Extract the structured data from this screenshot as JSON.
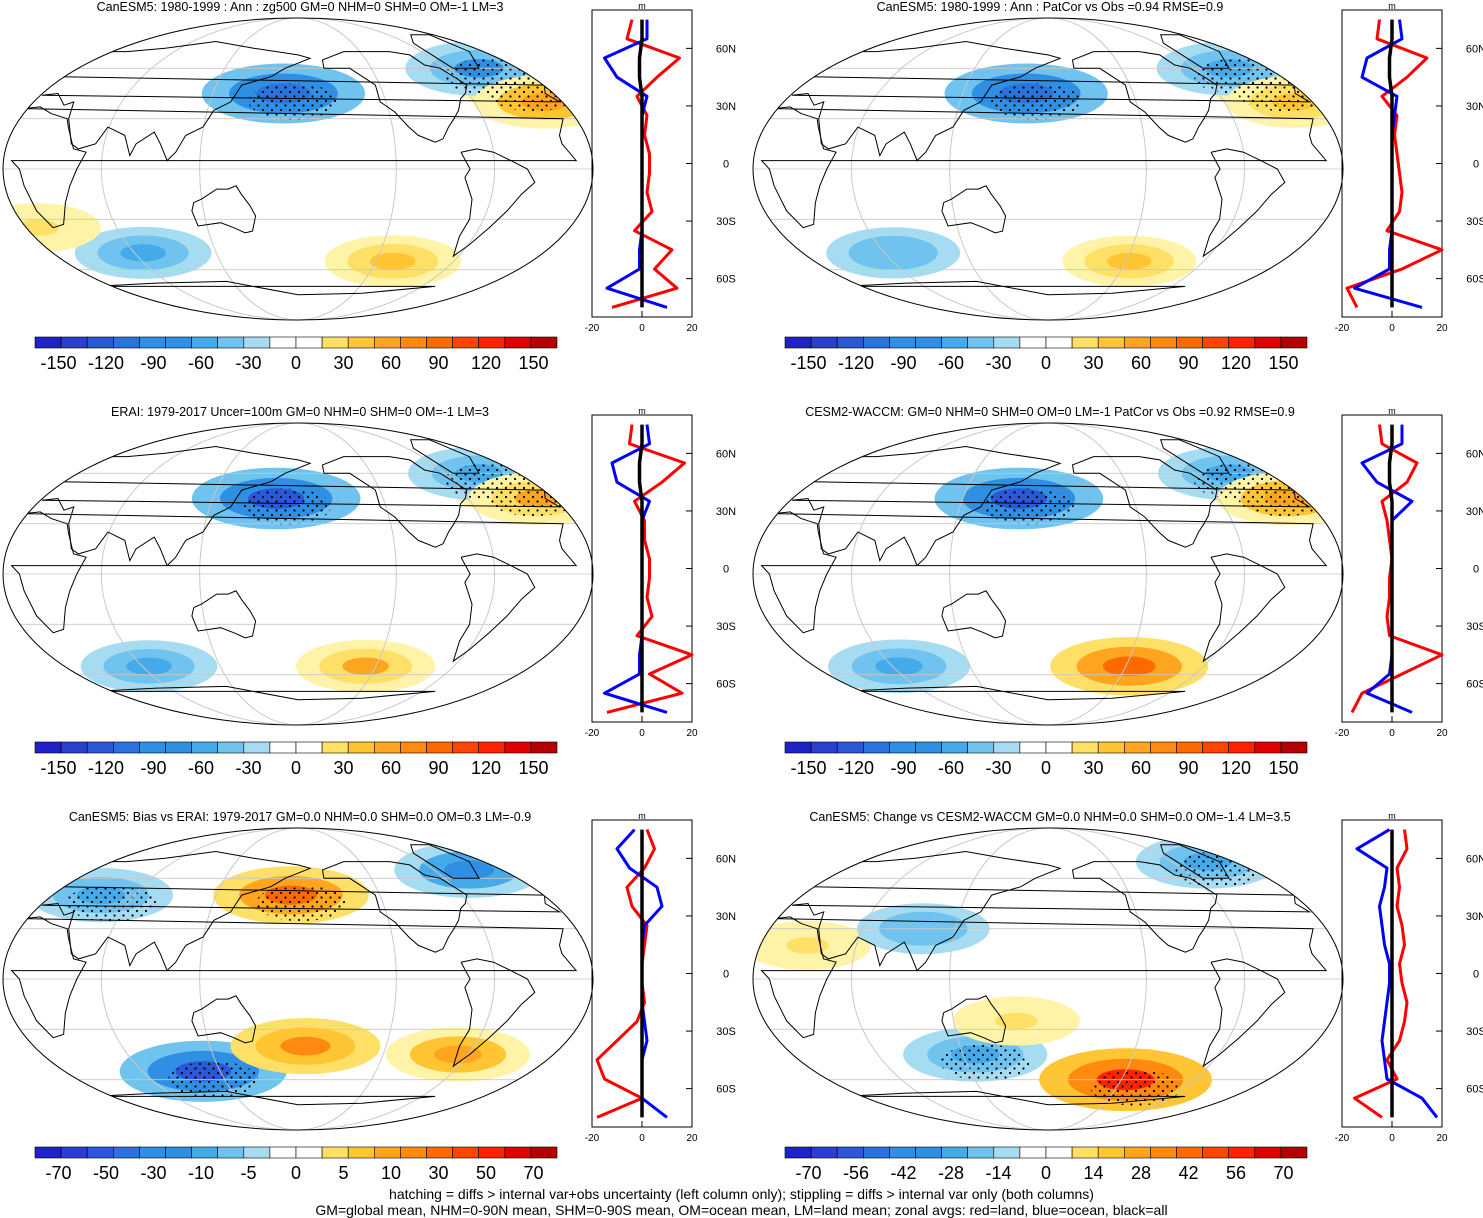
{
  "footer": {
    "line1": "hatching = diffs > internal var+obs uncertainty (left column only); stippling = diffs > internal var only (both columns)",
    "line2": "GM=global mean, NHM=0-90N mean, SHM=0-90S mean, OM=ocean mean, LM=land mean; zonal avgs: red=land, blue=ocean, black=all"
  },
  "colors": {
    "land": "#ff0000",
    "ocean": "#0000ff",
    "all": "#000000",
    "warm_scale": [
      "#ffffff",
      "#fff3a8",
      "#ffe066",
      "#ffc533",
      "#ffa51f",
      "#ff8a0f",
      "#ff6a00",
      "#ff4400",
      "#ff2200",
      "#e00000",
      "#b40000"
    ],
    "cool_scale": [
      "#ffffff",
      "#a6dcf2",
      "#6fc3ee",
      "#45aaea",
      "#2f8fe3",
      "#2a73dc",
      "#2a58d6",
      "#2a3fd0",
      "#1e22c8"
    ]
  },
  "chart_data": [
    {
      "type": "map",
      "title": "CanESM5: 1980-1999 : Ann : zg500 GM=0 NHM=0 SHM=0 OM=-1 LM=3",
      "projection": "Robinson, centered 180°",
      "colorbar": {
        "levels": [
          -150,
          -120,
          -90,
          -60,
          -30,
          0,
          30,
          60,
          90,
          120,
          150
        ],
        "labels": [
          "-150",
          "-120",
          "-90",
          "-60",
          "-30",
          "0",
          "30",
          "60",
          "90",
          "120",
          "150"
        ]
      },
      "anomalies": [
        {
          "lon": -20,
          "lat": 50,
          "value": 45
        },
        {
          "lon": 170,
          "lat": 45,
          "value": -100
        },
        {
          "lon": 320,
          "lat": 60,
          "value": -70
        },
        {
          "lon": 345,
          "lat": 40,
          "value": 60
        },
        {
          "lon": 250,
          "lat": -55,
          "value": 50
        },
        {
          "lon": 70,
          "lat": -50,
          "value": -50
        },
        {
          "lon": 10,
          "lat": -35,
          "value": 30
        }
      ],
      "zonal": {
        "xlabel": "m",
        "xlim": [
          -20,
          20
        ],
        "xticks": [
          "-20",
          "0",
          "20"
        ],
        "lat_ticks": [
          "60N",
          "30N",
          "0",
          "30S",
          "60S"
        ],
        "lat": [
          75,
          65,
          55,
          45,
          35,
          25,
          15,
          5,
          -5,
          -15,
          -25,
          -35,
          -45,
          -55,
          -65,
          -75
        ],
        "land": [
          -4,
          -6,
          15,
          6,
          -2,
          2,
          1,
          3,
          3,
          2,
          4,
          -3,
          12,
          5,
          14,
          -12
        ],
        "ocean": [
          2,
          2,
          -15,
          -10,
          2,
          0,
          0,
          0,
          0,
          0,
          0,
          0,
          -1,
          -1,
          -14,
          10
        ],
        "all": [
          0,
          0,
          -1,
          -1,
          0,
          0,
          0,
          0,
          0,
          0,
          0,
          0,
          0,
          0,
          0,
          0
        ]
      }
    },
    {
      "type": "map",
      "title": "CanESM5: 1980-1999 : Ann : PatCor vs Obs =0.94 RMSE=0.9",
      "projection": "Robinson, centered 180°",
      "colorbar": {
        "levels": [
          -150,
          -120,
          -90,
          -60,
          -30,
          0,
          30,
          60,
          90,
          120,
          150
        ],
        "labels": [
          "-150",
          "-120",
          "-90",
          "-60",
          "-30",
          "0",
          "30",
          "60",
          "90",
          "120",
          "150"
        ]
      },
      "anomalies": [
        {
          "lon": -20,
          "lat": 50,
          "value": 40
        },
        {
          "lon": 165,
          "lat": 45,
          "value": -100
        },
        {
          "lon": 320,
          "lat": 60,
          "value": -65
        },
        {
          "lon": 345,
          "lat": 40,
          "value": 50
        },
        {
          "lon": 240,
          "lat": -55,
          "value": 45
        },
        {
          "lon": 70,
          "lat": -50,
          "value": -45
        }
      ],
      "zonal": {
        "xlabel": "m",
        "xlim": [
          -20,
          20
        ],
        "xticks": [
          "-20",
          "0",
          "20"
        ],
        "lat_ticks": [
          "60N",
          "30N",
          "0",
          "30S",
          "60S"
        ],
        "lat": [
          75,
          65,
          55,
          45,
          35,
          25,
          15,
          5,
          -5,
          -15,
          -25,
          -35,
          -45,
          -55,
          -65,
          -75
        ],
        "land": [
          -5,
          -6,
          14,
          6,
          -4,
          2,
          1,
          2,
          3,
          4,
          3,
          -2,
          20,
          4,
          -18,
          -14
        ],
        "ocean": [
          3,
          4,
          -10,
          -12,
          2,
          1,
          0,
          0,
          0,
          0,
          0,
          0,
          -1,
          -1,
          -15,
          12
        ],
        "all": [
          0,
          0,
          -1,
          -1,
          0,
          0,
          0,
          0,
          0,
          0,
          0,
          0,
          0,
          0,
          0,
          0
        ]
      }
    },
    {
      "type": "map",
      "title": "ERAI: 1979-2017 Uncer=100m GM=0 NHM=0 SHM=0 OM=-1 LM=3",
      "projection": "Robinson, centered 180°",
      "colorbar": {
        "levels": [
          -150,
          -120,
          -90,
          -60,
          -30,
          0,
          30,
          60,
          90,
          120,
          150
        ],
        "labels": [
          "-150",
          "-120",
          "-90",
          "-60",
          "-30",
          "0",
          "30",
          "60",
          "90",
          "120",
          "150"
        ]
      },
      "anomalies": [
        {
          "lon": -20,
          "lat": 50,
          "value": 55
        },
        {
          "lon": 165,
          "lat": 45,
          "value": -110
        },
        {
          "lon": 320,
          "lat": 60,
          "value": -60
        },
        {
          "lon": 345,
          "lat": 45,
          "value": 55
        },
        {
          "lon": 230,
          "lat": -55,
          "value": 55
        },
        {
          "lon": 70,
          "lat": -55,
          "value": -50
        }
      ],
      "zonal": {
        "xlabel": "m",
        "xlim": [
          -20,
          20
        ],
        "xticks": [
          "-20",
          "0",
          "20"
        ],
        "lat_ticks": [
          "60N",
          "30N",
          "0",
          "30S",
          "60S"
        ],
        "lat": [
          75,
          65,
          55,
          45,
          35,
          25,
          15,
          5,
          -5,
          -15,
          -25,
          -35,
          -45,
          -55,
          -65,
          -75
        ],
        "land": [
          -4,
          -5,
          17,
          8,
          -3,
          1,
          1,
          3,
          3,
          2,
          4,
          -2,
          20,
          3,
          16,
          -14
        ],
        "ocean": [
          2,
          3,
          -12,
          -10,
          3,
          0,
          0,
          0,
          0,
          0,
          0,
          0,
          -1,
          -1,
          -15,
          10
        ],
        "all": [
          0,
          0,
          -1,
          -1,
          0,
          0,
          0,
          0,
          0,
          0,
          0,
          0,
          0,
          0,
          0,
          0
        ]
      }
    },
    {
      "type": "map",
      "title": "CESM2-WACCM: GM=0 NHM=0 SHM=0 OM=0 LM=-1 PatCor vs Obs =0.92 RMSE=0.9",
      "projection": "Robinson, centered 180°",
      "colorbar": {
        "levels": [
          -150,
          -120,
          -90,
          -60,
          -30,
          0,
          30,
          60,
          90,
          120,
          150
        ],
        "labels": [
          "-150",
          "-120",
          "-90",
          "-60",
          "-30",
          "0",
          "30",
          "60",
          "90",
          "120",
          "150"
        ]
      },
      "anomalies": [
        {
          "lon": -20,
          "lat": 50,
          "value": 40
        },
        {
          "lon": 160,
          "lat": 45,
          "value": -110
        },
        {
          "lon": 320,
          "lat": 60,
          "value": -60
        },
        {
          "lon": 345,
          "lat": 45,
          "value": 60
        },
        {
          "lon": 240,
          "lat": -55,
          "value": 90
        },
        {
          "lon": 70,
          "lat": -55,
          "value": -60
        }
      ],
      "zonal": {
        "xlabel": "m",
        "xlim": [
          -20,
          20
        ],
        "xticks": [
          "-20",
          "0",
          "20"
        ],
        "lat_ticks": [
          "60N",
          "30N",
          "0",
          "30S",
          "60S"
        ],
        "lat": [
          75,
          65,
          55,
          45,
          35,
          25,
          15,
          5,
          -5,
          -15,
          -25,
          -35,
          -45,
          -55,
          -65,
          -75
        ],
        "land": [
          -5,
          -4,
          10,
          6,
          -4,
          -2,
          -1,
          0,
          -1,
          -1,
          -2,
          -1,
          20,
          4,
          -12,
          -16
        ],
        "ocean": [
          4,
          4,
          -12,
          -6,
          8,
          0,
          0,
          0,
          0,
          0,
          0,
          0,
          0,
          -1,
          -10,
          8
        ],
        "all": [
          0,
          0,
          -1,
          -1,
          0,
          0,
          0,
          0,
          0,
          0,
          0,
          0,
          0,
          0,
          0,
          0
        ]
      }
    },
    {
      "type": "map",
      "title": "CanESM5: Bias vs ERAI: 1979-2017 GM=0.0 NHM=0.0 SHM=0.0 OM=0.3 LM=-0.9",
      "projection": "Robinson, centered 180°",
      "colorbar": {
        "levels": [
          -70,
          -50,
          -30,
          -10,
          -5,
          0,
          5,
          10,
          30,
          50,
          70
        ],
        "labels": [
          "-70",
          "-50",
          "-30",
          "-10",
          "-5",
          "0",
          "5",
          "10",
          "30",
          "50",
          "70"
        ]
      },
      "anomalies": [
        {
          "lon": 175,
          "lat": 50,
          "value": 40
        },
        {
          "lon": 40,
          "lat": 50,
          "value": -30
        },
        {
          "lon": 110,
          "lat": -55,
          "value": -50
        },
        {
          "lon": 290,
          "lat": -45,
          "value": 30
        },
        {
          "lon": 185,
          "lat": -40,
          "value": 35
        },
        {
          "lon": 320,
          "lat": 65,
          "value": -35
        }
      ],
      "zonal": {
        "xlabel": "m",
        "xlim": [
          -20,
          20
        ],
        "xticks": [
          "-20",
          "0",
          "20"
        ],
        "lat_ticks": [
          "60N",
          "30N",
          "0",
          "30S",
          "60S"
        ],
        "lat": [
          75,
          65,
          55,
          45,
          35,
          25,
          15,
          5,
          -5,
          -15,
          -25,
          -35,
          -45,
          -55,
          -65,
          -75
        ],
        "land": [
          2,
          5,
          1,
          -6,
          -4,
          2,
          1,
          0,
          0,
          1,
          -2,
          -10,
          -18,
          -15,
          0,
          -18
        ],
        "ocean": [
          -3,
          -10,
          -5,
          6,
          8,
          1,
          0,
          0,
          0,
          0,
          1,
          2,
          0,
          0,
          0,
          10
        ],
        "all": [
          0,
          0,
          0,
          0,
          0,
          0,
          0,
          0,
          0,
          0,
          0,
          0,
          0,
          0,
          0,
          0
        ]
      }
    },
    {
      "type": "map",
      "title": "CanESM5: Change vs CESM2-WACCM GM=0.0 NHM=0.0 SHM=0.0 OM=-1.4 LM=3.5",
      "projection": "Robinson, centered 180°",
      "colorbar": {
        "levels": [
          -70,
          -56,
          -42,
          -28,
          -14,
          0,
          14,
          28,
          42,
          56,
          70
        ],
        "labels": [
          "-70",
          "-56",
          "-42",
          "-28",
          "-14",
          "0",
          "14",
          "28",
          "42",
          "56",
          "70"
        ]
      },
      "anomalies": [
        {
          "lon": 240,
          "lat": -60,
          "value": 55
        },
        {
          "lon": 130,
          "lat": -45,
          "value": -30
        },
        {
          "lon": 320,
          "lat": 70,
          "value": -30
        },
        {
          "lon": 30,
          "lat": 20,
          "value": 15
        },
        {
          "lon": 160,
          "lat": -25,
          "value": 15
        },
        {
          "lon": 100,
          "lat": 30,
          "value": -20
        }
      ],
      "zonal": {
        "xlabel": "m",
        "xlim": [
          -20,
          20
        ],
        "xticks": [
          "-20",
          "0",
          "20"
        ],
        "lat_ticks": [
          "60N",
          "30N",
          "0",
          "30S",
          "60S"
        ],
        "lat": [
          75,
          65,
          55,
          45,
          35,
          25,
          15,
          5,
          -5,
          -15,
          -25,
          -35,
          -45,
          -55,
          -65,
          -75
        ],
        "land": [
          5,
          6,
          2,
          3,
          2,
          4,
          5,
          3,
          4,
          6,
          5,
          3,
          -2,
          2,
          -15,
          -4
        ],
        "ocean": [
          -1,
          -14,
          -2,
          -3,
          -5,
          -4,
          -3,
          -1,
          -1,
          -2,
          -3,
          -4,
          -3,
          -2,
          12,
          18
        ],
        "all": [
          0,
          0,
          0,
          0,
          0,
          0,
          0,
          0,
          0,
          0,
          0,
          0,
          0,
          0,
          0,
          0
        ]
      }
    }
  ]
}
